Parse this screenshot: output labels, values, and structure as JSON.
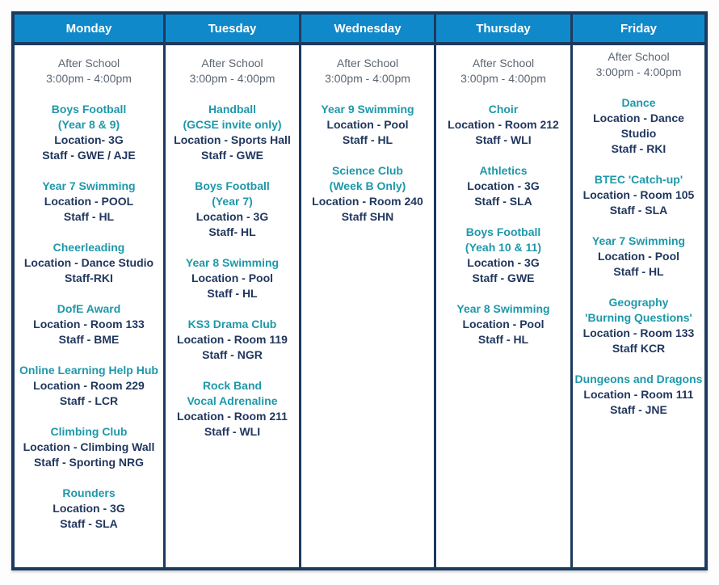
{
  "colors": {
    "header_bg": "#1089cb",
    "border": "#1c3a5e",
    "activity_text": "#1e98aa",
    "detail_text": "#21375e",
    "time_text": "#5c6672",
    "header_text": "#ffffff",
    "page_bg": "#fdfdfd"
  },
  "timetable": {
    "columns": [
      {
        "day": "Monday",
        "tight_top": false,
        "time_block": [
          "After School",
          "3:00pm - 4:00pm"
        ],
        "entries": [
          {
            "title": [
              "Boys Football",
              "(Year 8 & 9)"
            ],
            "details": [
              "Location- 3G",
              "Staff - GWE / AJE"
            ]
          },
          {
            "title": [
              "Year 7 Swimming"
            ],
            "details": [
              "Location - POOL",
              "Staff - HL"
            ]
          },
          {
            "title": [
              "Cheerleading"
            ],
            "details": [
              "Location - Dance Studio",
              "Staff-RKI"
            ]
          },
          {
            "title": [
              "DofE Award"
            ],
            "details": [
              "Location - Room 133",
              "Staff - BME"
            ]
          },
          {
            "title": [
              "Online Learning Help Hub"
            ],
            "details": [
              "Location - Room 229",
              "Staff - LCR"
            ]
          },
          {
            "title": [
              "Climbing Club"
            ],
            "details": [
              "Location - Climbing Wall",
              "Staff - Sporting NRG"
            ]
          },
          {
            "title": [
              "Rounders"
            ],
            "details": [
              "Location - 3G",
              "Staff - SLA"
            ]
          }
        ]
      },
      {
        "day": "Tuesday",
        "tight_top": false,
        "time_block": [
          "After School",
          "3:00pm - 4:00pm"
        ],
        "entries": [
          {
            "title": [
              "Handball",
              "(GCSE invite only)"
            ],
            "details": [
              "Location - Sports Hall",
              "Staff - GWE"
            ]
          },
          {
            "title": [
              "Boys Football",
              "(Year 7)"
            ],
            "details": [
              "Location - 3G",
              "Staff- HL"
            ]
          },
          {
            "title": [
              "Year 8 Swimming"
            ],
            "details": [
              "Location - Pool",
              "Staff - HL"
            ]
          },
          {
            "title": [
              "KS3 Drama Club"
            ],
            "details": [
              "Location - Room 119",
              "Staff - NGR"
            ]
          },
          {
            "title": [
              "Rock Band",
              "Vocal Adrenaline"
            ],
            "details": [
              "Location - Room 211",
              "Staff - WLI"
            ]
          }
        ]
      },
      {
        "day": "Wednesday",
        "tight_top": false,
        "time_block": [
          "After School",
          "3:00pm - 4:00pm"
        ],
        "entries": [
          {
            "title": [
              "Year 9 Swimming"
            ],
            "details": [
              "Location - Pool",
              "Staff - HL"
            ]
          },
          {
            "title": [
              "Science Club",
              "(Week B Only)"
            ],
            "details": [
              "Location - Room 240",
              "Staff SHN"
            ]
          }
        ]
      },
      {
        "day": "Thursday",
        "tight_top": false,
        "time_block": [
          "After School",
          "3:00pm - 4:00pm"
        ],
        "entries": [
          {
            "title": [
              "Choir"
            ],
            "details": [
              "Location - Room 212",
              "Staff - WLI"
            ]
          },
          {
            "title": [
              "Athletics"
            ],
            "details": [
              "Location - 3G",
              "Staff - SLA"
            ]
          },
          {
            "title": [
              "Boys Football",
              "(Yeah 10 & 11)"
            ],
            "details": [
              "Location - 3G",
              "Staff - GWE"
            ]
          },
          {
            "title": [
              "Year 8 Swimming"
            ],
            "details": [
              "Location - Pool",
              "Staff - HL"
            ]
          }
        ]
      },
      {
        "day": "Friday",
        "tight_top": true,
        "time_block": [
          "After School",
          "3:00pm - 4:00pm"
        ],
        "entries": [
          {
            "title": [
              "Dance"
            ],
            "details": [
              "Location - Dance",
              "Studio",
              "Staff - RKI"
            ]
          },
          {
            "title": [
              "BTEC 'Catch-up'"
            ],
            "details": [
              "Location - Room 105",
              "Staff - SLA"
            ]
          },
          {
            "title": [
              "Year 7 Swimming"
            ],
            "details": [
              "Location - Pool",
              "Staff - HL"
            ]
          },
          {
            "title": [
              "Geography",
              "'Burning Questions'"
            ],
            "details": [
              "Location - Room 133",
              "Staff KCR"
            ]
          },
          {
            "title": [
              "Dungeons and Dragons"
            ],
            "details": [
              "Location - Room 111",
              "Staff - JNE"
            ]
          }
        ]
      }
    ]
  }
}
